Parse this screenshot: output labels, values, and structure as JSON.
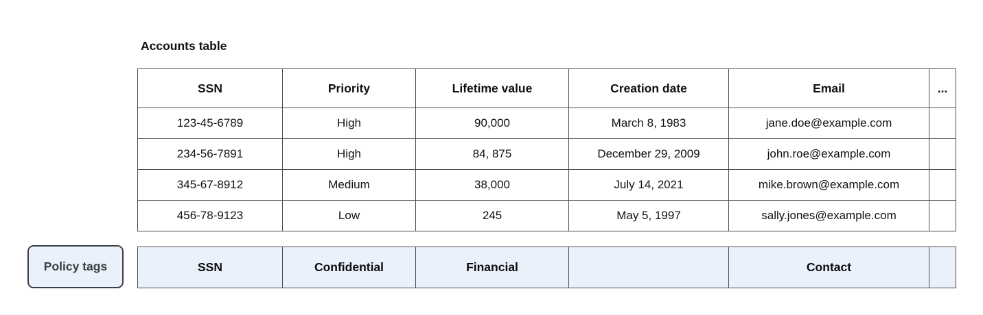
{
  "accounts_table": {
    "title": "Accounts table",
    "columns": {
      "ssn": "SSN",
      "priority": "Priority",
      "lifetime_value": "Lifetime value",
      "creation_date": "Creation date",
      "email": "Email",
      "more": "..."
    },
    "rows": [
      {
        "ssn": "123-45-6789",
        "priority": "High",
        "lifetime_value": "90,000",
        "creation_date": "March 8, 1983",
        "email": "jane.doe@example.com",
        "more": ""
      },
      {
        "ssn": "234-56-7891",
        "priority": "High",
        "lifetime_value": "84, 875",
        "creation_date": "December 29, 2009",
        "email": "john.roe@example.com",
        "more": ""
      },
      {
        "ssn": "345-67-8912",
        "priority": "Medium",
        "lifetime_value": "38,000",
        "creation_date": "July 14, 2021",
        "email": "mike.brown@example.com",
        "more": ""
      },
      {
        "ssn": "456-78-9123",
        "priority": "Low",
        "lifetime_value": "245",
        "creation_date": "May 5, 1997",
        "email": "sally.jones@example.com",
        "more": ""
      }
    ]
  },
  "policy_tags": {
    "button_label": "Policy tags",
    "tags": {
      "ssn_col": "SSN",
      "priority_col": "Confidential",
      "lifetime_value_col": "Financial",
      "creation_date_col": "",
      "email_col": "Contact",
      "more_col": ""
    }
  },
  "colors": {
    "tag_fill": "#eaf1fb",
    "table_border": "#474b52",
    "button_border": "#3c4043",
    "button_text": "#3c4043",
    "body_text": "#111111",
    "background": "#ffffff"
  }
}
